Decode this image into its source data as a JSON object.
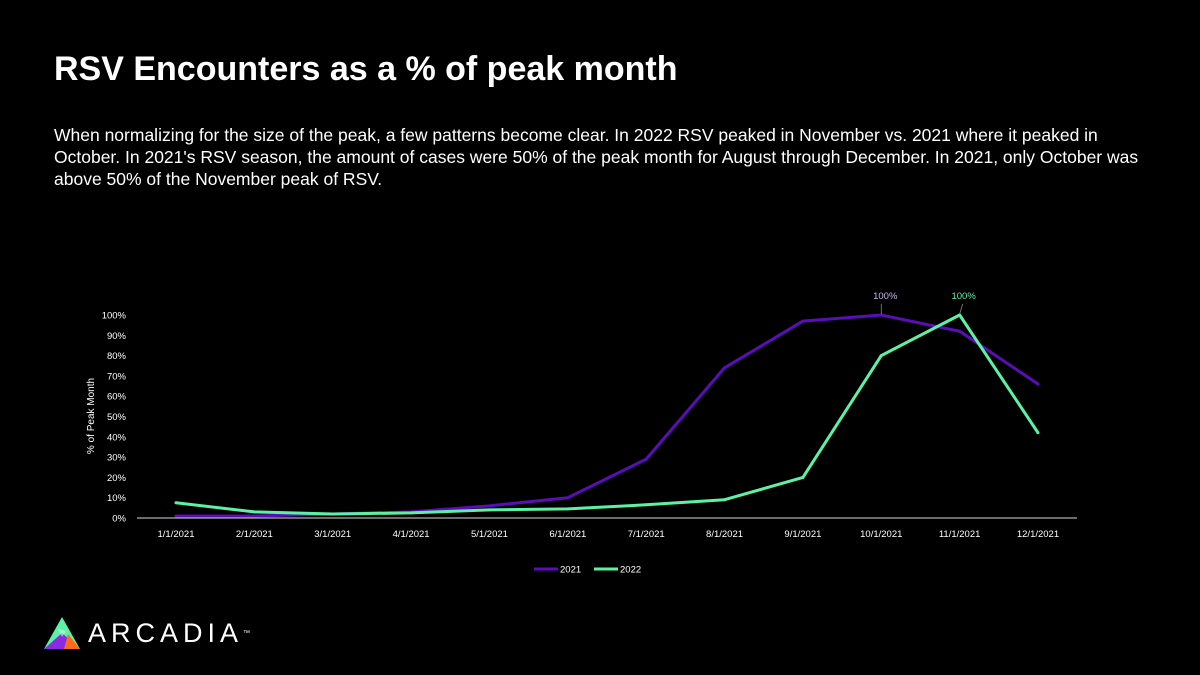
{
  "header": {
    "title": "RSV Encounters as a % of peak month",
    "description": "When normalizing for the size of the peak, a few patterns become clear. In 2022 RSV peaked in November vs. 2021 where it peaked in October. In 2021's RSV season, the amount of cases were 50% of the peak month for August through December. In 2021, only October was above 50% of the November peak of RSV."
  },
  "chart_data": {
    "type": "line",
    "title": "",
    "xlabel": "",
    "ylabel": "% of Peak Month",
    "categories": [
      "1/1/2021",
      "2/1/2021",
      "3/1/2021",
      "4/1/2021",
      "5/1/2021",
      "6/1/2021",
      "7/1/2021",
      "8/1/2021",
      "9/1/2021",
      "10/1/2021",
      "11/1/2021",
      "12/1/2021"
    ],
    "yticks": [
      "0%",
      "10%",
      "20%",
      "30%",
      "40%",
      "50%",
      "60%",
      "70%",
      "80%",
      "90%",
      "100%"
    ],
    "ylim": [
      0,
      100
    ],
    "grid": false,
    "legend_position": "bottom",
    "series": [
      {
        "name": "2021",
        "color": "#5b0db8",
        "label_color": "#c9b3ee",
        "values": [
          1,
          1,
          2,
          3,
          6,
          10,
          29,
          74,
          97,
          100,
          92,
          66
        ],
        "annotation": {
          "index": 9,
          "text": "100%"
        }
      },
      {
        "name": "2022",
        "color": "#5cf2a5",
        "label_color": "#5cf2a5",
        "values": [
          7.5,
          3,
          2,
          2.5,
          4,
          4.5,
          6.5,
          9,
          20,
          80,
          100,
          42
        ],
        "annotation": {
          "index": 10,
          "text": "100%"
        }
      }
    ]
  },
  "brand": {
    "name": "ARCADIA",
    "tm": "™"
  }
}
